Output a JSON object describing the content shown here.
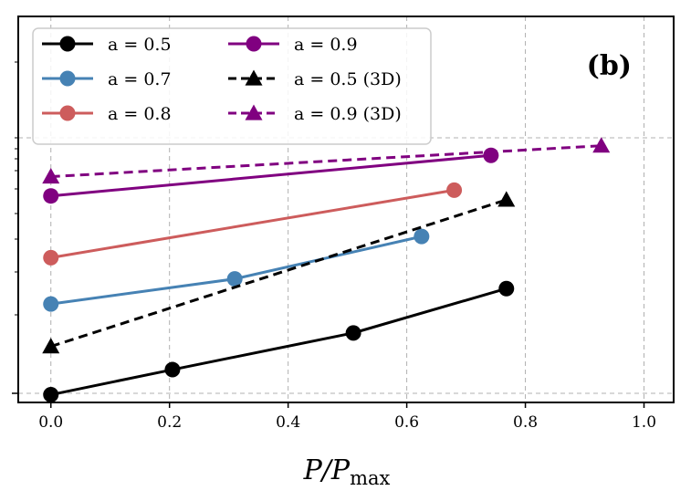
{
  "chart_data": {
    "type": "line",
    "panel_label": "(b)",
    "xlabel": "P/P",
    "xlabel_sub": "max",
    "ylabel": "",
    "xlim": [
      -0.055,
      1.05
    ],
    "ylim": [
      0,
      1
    ],
    "x_ticks": [
      "0.0",
      "0.2",
      "0.4",
      "0.6",
      "0.8",
      "1.0"
    ],
    "x_tick_values": [
      0.0,
      0.2,
      0.4,
      0.6,
      0.8,
      1.0
    ],
    "grid": true,
    "legend_position": "upper-left",
    "series": [
      {
        "name": "a = 0.5",
        "color": "#000000",
        "dash": false,
        "marker": "circle",
        "x": [
          0.0,
          0.205,
          0.51,
          0.768
        ],
        "y": [
          0.02,
          0.085,
          0.18,
          0.295
        ]
      },
      {
        "name": "a = 0.7",
        "color": "#4682b4",
        "dash": false,
        "marker": "circle",
        "x": [
          0.0,
          0.31,
          0.625
        ],
        "y": [
          0.255,
          0.32,
          0.43
        ]
      },
      {
        "name": "a = 0.8",
        "color": "#cd5c5c",
        "dash": false,
        "marker": "circle",
        "x": [
          0.0,
          0.68
        ],
        "y": [
          0.375,
          0.55
        ]
      },
      {
        "name": "a = 0.9",
        "color": "#800080",
        "dash": false,
        "marker": "circle",
        "x": [
          0.0,
          0.742
        ],
        "y": [
          0.535,
          0.64
        ]
      },
      {
        "name": "a = 0.5 (3D)",
        "color": "#000000",
        "dash": true,
        "marker": "triangle",
        "x": [
          0.0,
          0.768
        ],
        "y": [
          0.145,
          0.525
        ]
      },
      {
        "name": "a = 0.9 (3D)",
        "color": "#800080",
        "dash": true,
        "marker": "triangle",
        "x": [
          0.0,
          0.928
        ],
        "y": [
          0.585,
          0.665
        ]
      }
    ]
  }
}
